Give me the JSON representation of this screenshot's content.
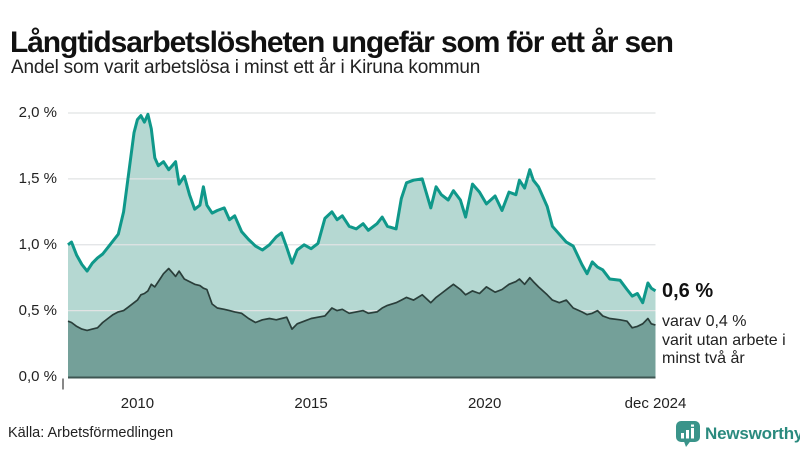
{
  "header": {
    "title": "Långtidsarbetslösheten ungefär som för ett år sen",
    "subtitle": "Andel som varit arbetslösa i minst ett år i Kiruna kommun"
  },
  "chart": {
    "y_ticks": [
      {
        "label": "2,0 %",
        "value": 2.0
      },
      {
        "label": "1,5 %",
        "value": 1.5
      },
      {
        "label": "1,0 %",
        "value": 1.0
      },
      {
        "label": "0,5 %",
        "value": 0.5
      },
      {
        "label": "0,0 %",
        "value": 0.0
      }
    ],
    "x_ticks": [
      {
        "label": "2010",
        "year": 2010
      },
      {
        "label": "2015",
        "year": 2015
      },
      {
        "label": "2020",
        "year": 2020
      },
      {
        "label": "dec 2024",
        "year": 2024.92
      }
    ]
  },
  "annotation": {
    "value": "0,6 %",
    "lines": [
      "varav 0,4 %",
      "varit utan arbete i",
      "minst två år"
    ]
  },
  "footer": {
    "source": "Källa: Arbetsförmedlingen",
    "brand": "Newsworthy"
  },
  "colors": {
    "one_year_line": "#0f988a",
    "one_year_fill": "#b5d8d2",
    "two_year_line": "#2a3e3a",
    "two_year_fill": "#74a099",
    "grid": "#e1e3e4",
    "baseline": "#3e5652",
    "brand_teal": "#2a8a7e",
    "text_dark": "#111111"
  },
  "chart_data": {
    "type": "area",
    "title": "Långtidsarbetslösheten ungefär som för ett år sen",
    "subtitle": "Andel som varit arbetslösa i minst ett år i Kiruna kommun",
    "unit": "%",
    "x_range": [
      2008.0,
      2024.92
    ],
    "ylim": [
      0,
      2.0
    ],
    "grid_values": [
      0.5,
      1.0,
      1.5,
      2.0
    ],
    "legend_position": "none",
    "grid": true,
    "x": [
      2008.0,
      2008.1,
      2008.25,
      2008.4,
      2008.55,
      2008.7,
      2008.85,
      2009.0,
      2009.15,
      2009.3,
      2009.45,
      2009.6,
      2009.75,
      2009.9,
      2010.0,
      2010.1,
      2010.2,
      2010.3,
      2010.4,
      2010.5,
      2010.6,
      2010.75,
      2010.9,
      2011.0,
      2011.1,
      2011.2,
      2011.35,
      2011.5,
      2011.65,
      2011.8,
      2011.9,
      2012.0,
      2012.15,
      2012.3,
      2012.5,
      2012.65,
      2012.8,
      2013.0,
      2013.2,
      2013.4,
      2013.6,
      2013.8,
      2014.0,
      2014.15,
      2014.3,
      2014.45,
      2014.6,
      2014.8,
      2015.0,
      2015.2,
      2015.4,
      2015.6,
      2015.75,
      2015.9,
      2016.1,
      2016.3,
      2016.5,
      2016.65,
      2016.9,
      2017.05,
      2017.2,
      2017.45,
      2017.6,
      2017.75,
      2017.95,
      2018.2,
      2018.45,
      2018.6,
      2018.75,
      2018.95,
      2019.1,
      2019.3,
      2019.45,
      2019.65,
      2019.85,
      2020.05,
      2020.3,
      2020.5,
      2020.7,
      2020.9,
      2021.0,
      2021.15,
      2021.3,
      2021.4,
      2021.55,
      2021.8,
      2021.95,
      2022.15,
      2022.35,
      2022.55,
      2022.8,
      2022.95,
      2023.1,
      2023.25,
      2023.4,
      2023.6,
      2023.9,
      2024.1,
      2024.25,
      2024.4,
      2024.55,
      2024.7,
      2024.8,
      2024.92
    ],
    "series": [
      {
        "name": "Arbetslösa minst ett år",
        "end_label": "0,6 %",
        "values": [
          1.0,
          1.02,
          0.92,
          0.85,
          0.8,
          0.86,
          0.9,
          0.93,
          0.98,
          1.03,
          1.08,
          1.25,
          1.55,
          1.85,
          1.95,
          1.98,
          1.93,
          1.99,
          1.88,
          1.66,
          1.6,
          1.63,
          1.57,
          1.6,
          1.63,
          1.46,
          1.52,
          1.38,
          1.27,
          1.3,
          1.44,
          1.3,
          1.24,
          1.26,
          1.28,
          1.19,
          1.22,
          1.1,
          1.04,
          0.99,
          0.96,
          1.0,
          1.06,
          1.09,
          0.98,
          0.86,
          0.96,
          1.0,
          0.97,
          1.01,
          1.2,
          1.25,
          1.19,
          1.22,
          1.14,
          1.12,
          1.16,
          1.11,
          1.16,
          1.21,
          1.14,
          1.12,
          1.35,
          1.47,
          1.49,
          1.5,
          1.28,
          1.44,
          1.38,
          1.34,
          1.41,
          1.34,
          1.21,
          1.46,
          1.4,
          1.31,
          1.37,
          1.26,
          1.4,
          1.38,
          1.49,
          1.43,
          1.57,
          1.49,
          1.44,
          1.29,
          1.14,
          1.08,
          1.02,
          0.99,
          0.85,
          0.78,
          0.87,
          0.83,
          0.81,
          0.74,
          0.73,
          0.66,
          0.61,
          0.63,
          0.56,
          0.71,
          0.67,
          0.65
        ]
      },
      {
        "name": "Arbetslösa minst två år",
        "end_label": "0,4 %",
        "values": [
          0.42,
          0.41,
          0.38,
          0.36,
          0.35,
          0.36,
          0.37,
          0.41,
          0.44,
          0.47,
          0.49,
          0.5,
          0.53,
          0.56,
          0.58,
          0.62,
          0.63,
          0.65,
          0.7,
          0.68,
          0.72,
          0.78,
          0.82,
          0.79,
          0.76,
          0.8,
          0.74,
          0.72,
          0.7,
          0.69,
          0.67,
          0.66,
          0.55,
          0.52,
          0.51,
          0.5,
          0.49,
          0.48,
          0.44,
          0.41,
          0.43,
          0.44,
          0.43,
          0.44,
          0.45,
          0.36,
          0.4,
          0.42,
          0.44,
          0.45,
          0.46,
          0.52,
          0.5,
          0.51,
          0.48,
          0.49,
          0.5,
          0.48,
          0.49,
          0.52,
          0.54,
          0.56,
          0.58,
          0.6,
          0.58,
          0.62,
          0.56,
          0.6,
          0.63,
          0.67,
          0.7,
          0.66,
          0.62,
          0.65,
          0.63,
          0.68,
          0.64,
          0.66,
          0.7,
          0.72,
          0.74,
          0.7,
          0.75,
          0.72,
          0.68,
          0.62,
          0.58,
          0.56,
          0.58,
          0.52,
          0.49,
          0.47,
          0.48,
          0.5,
          0.46,
          0.44,
          0.43,
          0.42,
          0.37,
          0.38,
          0.4,
          0.44,
          0.4,
          0.39
        ]
      }
    ]
  }
}
